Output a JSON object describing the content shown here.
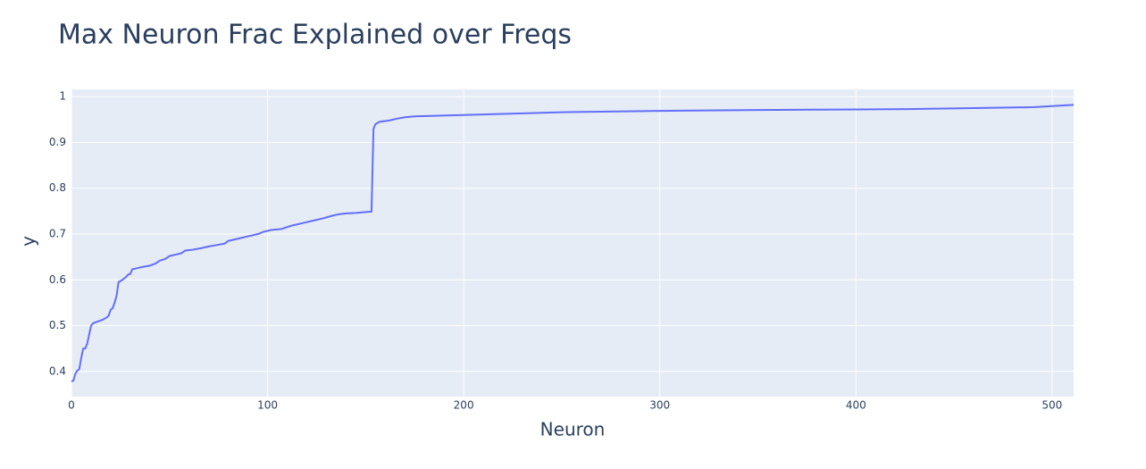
{
  "chart_data": {
    "type": "line",
    "title": "Max Neuron Frac Explained over Freqs",
    "x_label": "Neuron",
    "y_label": "y",
    "x": [
      0,
      1,
      2,
      3,
      4,
      5,
      6,
      7,
      8,
      9,
      10,
      11,
      12,
      14,
      16,
      18,
      19,
      20,
      21,
      22,
      23,
      24,
      26,
      28,
      29,
      30,
      31,
      33,
      36,
      40,
      43,
      45,
      48,
      50,
      53,
      56,
      58,
      62,
      66,
      70,
      74,
      78,
      80,
      85,
      90,
      95,
      98,
      102,
      107,
      112,
      118,
      122,
      128,
      133,
      136,
      140,
      145,
      150,
      153,
      154,
      155,
      157,
      162,
      166,
      170,
      175,
      200,
      250,
      300,
      350,
      400,
      430,
      460,
      490,
      511
    ],
    "series": [
      {
        "color": "#636efa",
        "values": [
          0.378,
          0.38,
          0.395,
          0.402,
          0.405,
          0.43,
          0.45,
          0.45,
          0.46,
          0.48,
          0.5,
          0.505,
          0.507,
          0.51,
          0.513,
          0.518,
          0.522,
          0.535,
          0.538,
          0.55,
          0.565,
          0.595,
          0.6,
          0.607,
          0.612,
          0.613,
          0.623,
          0.625,
          0.628,
          0.631,
          0.636,
          0.642,
          0.646,
          0.652,
          0.655,
          0.658,
          0.664,
          0.666,
          0.669,
          0.673,
          0.676,
          0.679,
          0.685,
          0.69,
          0.695,
          0.7,
          0.705,
          0.709,
          0.711,
          0.718,
          0.724,
          0.728,
          0.734,
          0.74,
          0.743,
          0.745,
          0.746,
          0.748,
          0.749,
          0.93,
          0.94,
          0.945,
          0.948,
          0.952,
          0.955,
          0.957,
          0.96,
          0.966,
          0.969,
          0.971,
          0.972,
          0.973,
          0.975,
          0.977,
          0.982
        ]
      }
    ],
    "xlim": [
      0,
      511
    ],
    "ylim": [
      0.345,
      1.016
    ],
    "xticks": [
      0,
      100,
      200,
      300,
      400,
      500
    ],
    "yticks": [
      0.4,
      0.5,
      0.6,
      0.7,
      0.8,
      0.9,
      1
    ],
    "grid": true
  }
}
